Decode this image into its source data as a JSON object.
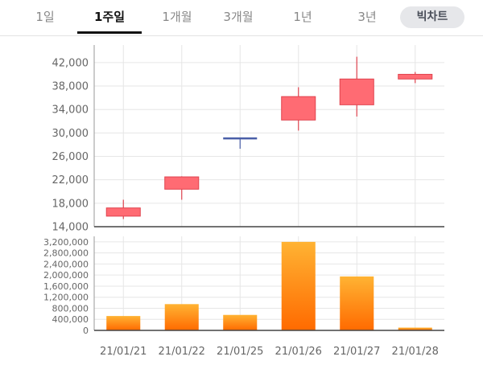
{
  "tabs": [
    {
      "label": "1일"
    },
    {
      "label": "1주일"
    },
    {
      "label": "1개월"
    },
    {
      "label": "3개월"
    },
    {
      "label": "1년"
    },
    {
      "label": "3년"
    }
  ],
  "active_tab": "1주일",
  "big_chart_label": "빅차트",
  "colors": {
    "candle_up": "#ff6b73",
    "candle_up_stroke": "#e0444f",
    "candle_doji": "#4a5fa8",
    "bar_top": "#ffb333",
    "bar_bottom": "#ff6a00"
  },
  "chart_data": [
    {
      "type": "candlestick",
      "categories": [
        "21/01/21",
        "21/01/22",
        "21/01/25",
        "21/01/26",
        "21/01/27",
        "21/01/28"
      ],
      "ohlc": [
        {
          "open": 15800,
          "high": 18600,
          "low": 15300,
          "close": 17200
        },
        {
          "open": 20400,
          "high": 22600,
          "low": 18600,
          "close": 22500
        },
        {
          "open": 29100,
          "high": 29200,
          "low": 27300,
          "close": 29100
        },
        {
          "open": 32200,
          "high": 37800,
          "low": 30400,
          "close": 36200
        },
        {
          "open": 34800,
          "high": 43000,
          "low": 32800,
          "close": 39200
        },
        {
          "open": 39200,
          "high": 40400,
          "low": 38500,
          "close": 40000
        }
      ],
      "yticks": [
        "42,000",
        "38,000",
        "34,000",
        "30,000",
        "26,000",
        "22,000",
        "18,000",
        "14,000"
      ],
      "ylim": [
        14000,
        45000
      ]
    },
    {
      "type": "bar",
      "categories": [
        "21/01/21",
        "21/01/22",
        "21/01/25",
        "21/01/26",
        "21/01/27",
        "21/01/28"
      ],
      "values": [
        520000,
        950000,
        560000,
        3200000,
        1950000,
        100000
      ],
      "yticks": [
        "3,200,000",
        "2,800,000",
        "2,400,000",
        "2,000,000",
        "1,600,000",
        "1,200,000",
        "800,000",
        "400,000",
        "0"
      ],
      "ylim": [
        0,
        3400000
      ]
    }
  ]
}
